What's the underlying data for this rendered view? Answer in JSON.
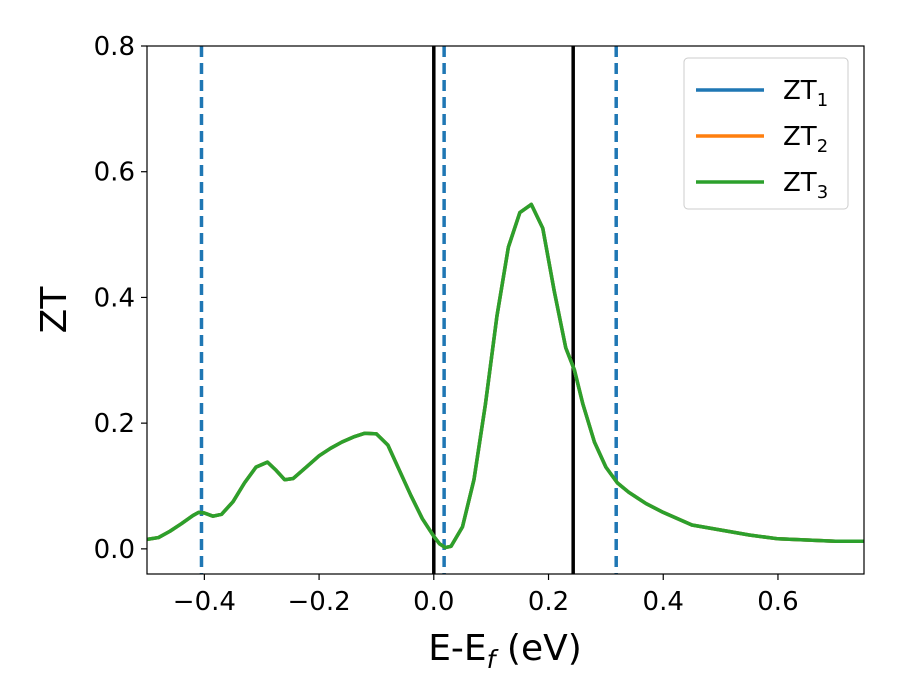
{
  "chart_data": {
    "type": "line",
    "title": "",
    "xlabel": "E-E",
    "xlabel_sub": "f",
    "xlabel_unit": " (eV)",
    "ylabel": "ZT",
    "xlim": [
      -0.5,
      0.75
    ],
    "ylim": [
      -0.04,
      0.8
    ],
    "xticks": [
      -0.4,
      -0.2,
      0.0,
      0.2,
      0.4,
      0.6
    ],
    "xtick_labels": [
      "−0.4",
      "−0.2",
      "0.0",
      "0.2",
      "0.4",
      "0.6"
    ],
    "yticks": [
      0.0,
      0.2,
      0.4,
      0.6,
      0.8
    ],
    "ytick_labels": [
      "0.0",
      "0.2",
      "0.4",
      "0.6",
      "0.8"
    ],
    "grid": false,
    "legend_position": "top-right",
    "x": [
      -0.5,
      -0.48,
      -0.46,
      -0.44,
      -0.42,
      -0.41,
      -0.4,
      -0.385,
      -0.37,
      -0.35,
      -0.33,
      -0.31,
      -0.29,
      -0.275,
      -0.26,
      -0.245,
      -0.22,
      -0.2,
      -0.18,
      -0.16,
      -0.14,
      -0.12,
      -0.1,
      -0.08,
      -0.06,
      -0.04,
      -0.02,
      0.0,
      0.01,
      0.02,
      0.03,
      0.05,
      0.07,
      0.09,
      0.11,
      0.13,
      0.15,
      0.17,
      0.19,
      0.21,
      0.23,
      0.245,
      0.26,
      0.28,
      0.3,
      0.32,
      0.34,
      0.37,
      0.4,
      0.45,
      0.5,
      0.55,
      0.6,
      0.65,
      0.7,
      0.75
    ],
    "series": [
      {
        "name": "ZT",
        "name_sub": "1",
        "color": "#1f77b4",
        "values": [
          0.015,
          0.018,
          0.028,
          0.04,
          0.053,
          0.058,
          0.057,
          0.052,
          0.055,
          0.075,
          0.105,
          0.13,
          0.138,
          0.125,
          0.11,
          0.112,
          0.132,
          0.148,
          0.16,
          0.17,
          0.178,
          0.184,
          0.183,
          0.165,
          0.125,
          0.085,
          0.048,
          0.02,
          0.008,
          0.002,
          0.004,
          0.035,
          0.11,
          0.23,
          0.37,
          0.48,
          0.535,
          0.548,
          0.51,
          0.41,
          0.32,
          0.285,
          0.23,
          0.17,
          0.13,
          0.105,
          0.09,
          0.072,
          0.058,
          0.038,
          0.03,
          0.022,
          0.016,
          0.014,
          0.012,
          0.012
        ]
      },
      {
        "name": "ZT",
        "name_sub": "2",
        "color": "#ff7f0e",
        "values": [
          0.015,
          0.018,
          0.028,
          0.04,
          0.053,
          0.058,
          0.057,
          0.052,
          0.055,
          0.075,
          0.105,
          0.13,
          0.138,
          0.125,
          0.11,
          0.112,
          0.132,
          0.148,
          0.16,
          0.17,
          0.178,
          0.184,
          0.183,
          0.165,
          0.125,
          0.085,
          0.048,
          0.02,
          0.008,
          0.002,
          0.004,
          0.035,
          0.11,
          0.23,
          0.37,
          0.48,
          0.535,
          0.548,
          0.51,
          0.41,
          0.32,
          0.285,
          0.23,
          0.17,
          0.13,
          0.105,
          0.09,
          0.072,
          0.058,
          0.038,
          0.03,
          0.022,
          0.016,
          0.014,
          0.012,
          0.012
        ]
      },
      {
        "name": "ZT",
        "name_sub": "3",
        "color": "#2ca02c",
        "values": [
          0.015,
          0.018,
          0.028,
          0.04,
          0.053,
          0.058,
          0.057,
          0.052,
          0.055,
          0.075,
          0.105,
          0.13,
          0.138,
          0.125,
          0.11,
          0.112,
          0.132,
          0.148,
          0.16,
          0.17,
          0.178,
          0.184,
          0.183,
          0.165,
          0.125,
          0.085,
          0.048,
          0.02,
          0.008,
          0.002,
          0.004,
          0.035,
          0.11,
          0.23,
          0.37,
          0.48,
          0.535,
          0.548,
          0.51,
          0.41,
          0.32,
          0.285,
          0.23,
          0.17,
          0.13,
          0.105,
          0.09,
          0.072,
          0.058,
          0.038,
          0.03,
          0.022,
          0.016,
          0.014,
          0.012,
          0.012
        ]
      }
    ],
    "vlines_solid": {
      "color": "#000000",
      "x": [
        0.0,
        0.243
      ]
    },
    "vlines_dashed": {
      "color": "#1f77b4",
      "x": [
        -0.405,
        0.018,
        0.318
      ]
    }
  }
}
